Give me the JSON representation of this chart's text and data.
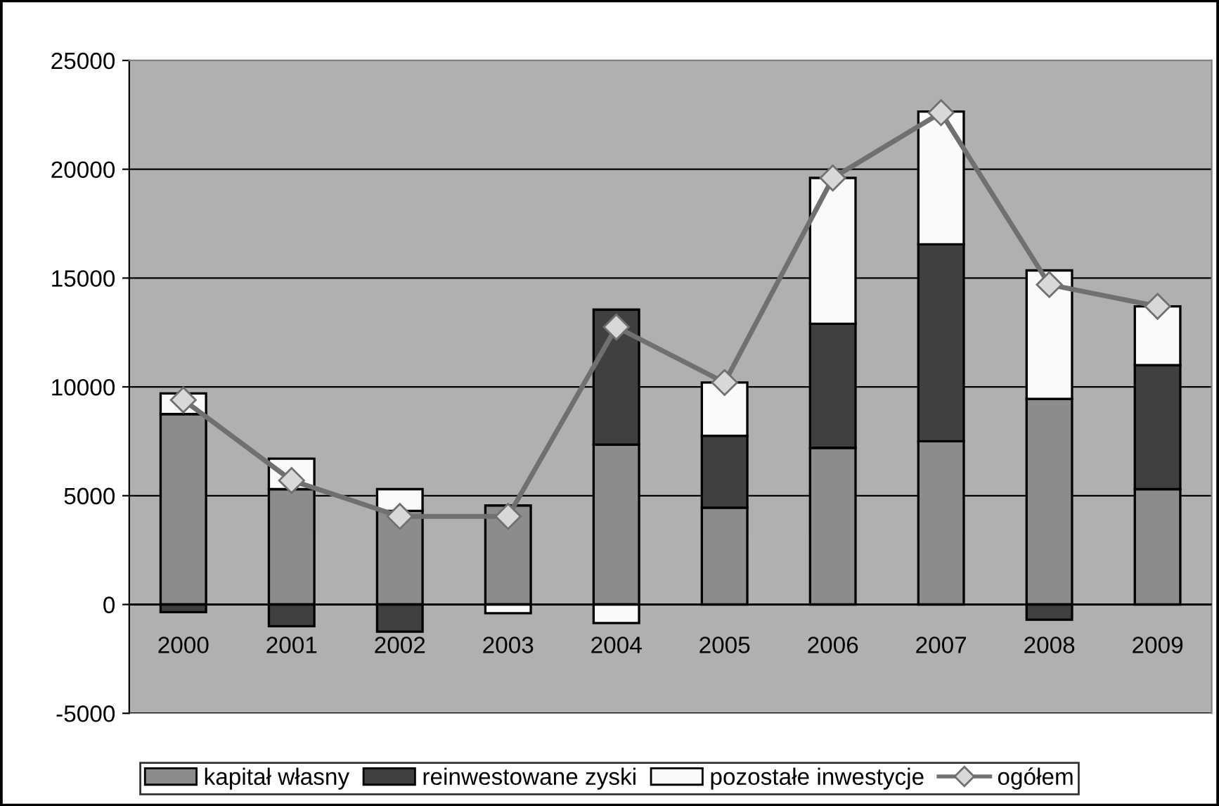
{
  "chart_data": {
    "type": "bar",
    "stacked": true,
    "categories": [
      "2000",
      "2001",
      "2002",
      "2003",
      "2004",
      "2005",
      "2006",
      "2007",
      "2008",
      "2009"
    ],
    "series": [
      {
        "name": "kapitał własny",
        "color": "#8c8c8c",
        "values": [
          8750,
          5300,
          4300,
          4550,
          7350,
          4450,
          7200,
          7500,
          9450,
          5300
        ]
      },
      {
        "name": "reinwestowane zyski",
        "color": "#404040",
        "values": [
          -350,
          -1000,
          -1250,
          null,
          6200,
          3300,
          5700,
          9050,
          -700,
          5700
        ]
      },
      {
        "name": "pozostałe inwestycje",
        "color": "#fafafa",
        "values": [
          950,
          1400,
          1000,
          -400,
          -850,
          2450,
          6700,
          6100,
          5900,
          2700
        ]
      },
      {
        "name": "ogółem",
        "type": "line",
        "color": "#707070",
        "marker": "diamond",
        "values": [
          9400,
          5700,
          4050,
          4050,
          12750,
          10200,
          19600,
          22600,
          14700,
          13700
        ]
      }
    ],
    "ylim": [
      -5000,
      25000
    ],
    "yticks": [
      -5000,
      0,
      5000,
      10000,
      15000,
      20000,
      25000
    ],
    "grid": "y",
    "legend": "bottom"
  }
}
